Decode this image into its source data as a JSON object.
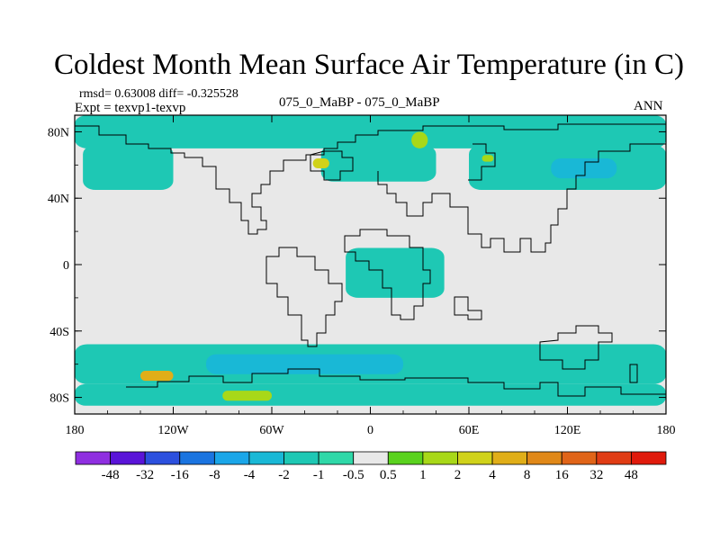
{
  "header": {
    "title": "Coldest Month Mean Surface Air Temperature (in C)",
    "stats": "rmsd= 0.63008 diff= -0.325528",
    "experiment": "Expt = texvp1-texvp",
    "comparison": "075_0_MaBP - 075_0_MaBP",
    "season": "ANN"
  },
  "chart_data": {
    "type": "heatmap",
    "title": "Coldest Month Mean Surface Air Temperature (in C)",
    "subtitle": "075_0_MaBP - 075_0_MaBP",
    "xlabel": "",
    "ylabel": "",
    "xlim": [
      -180,
      180
    ],
    "ylim": [
      -90,
      90
    ],
    "x_ticks": [
      {
        "value": -180,
        "label": "180"
      },
      {
        "value": -120,
        "label": "120W"
      },
      {
        "value": -60,
        "label": "60W"
      },
      {
        "value": 0,
        "label": "0"
      },
      {
        "value": 60,
        "label": "60E"
      },
      {
        "value": 120,
        "label": "120E"
      },
      {
        "value": 180,
        "label": "180"
      }
    ],
    "y_ticks": [
      {
        "value": 80,
        "label": "80N"
      },
      {
        "value": 40,
        "label": "40N"
      },
      {
        "value": 0,
        "label": "0"
      },
      {
        "value": -40,
        "label": "40S"
      },
      {
        "value": -80,
        "label": "80S"
      }
    ],
    "colorbar": {
      "levels": [
        "-48",
        "-32",
        "-16",
        "-8",
        "-4",
        "-2",
        "-1",
        "-0.5",
        "0.5",
        "1",
        "2",
        "4",
        "8",
        "16",
        "32",
        "48"
      ],
      "colors": [
        "#8f2fe0",
        "#5a14d8",
        "#2c50de",
        "#1a74e0",
        "#1aa6e8",
        "#19b8d6",
        "#1ec8b4",
        "#2fd8a8",
        "#e8e8e8",
        "#5ad21e",
        "#a8d818",
        "#d0d21a",
        "#e0ae18",
        "#e08818",
        "#e06418",
        "#e03c14",
        "#e01a0c"
      ]
    },
    "regions": [
      {
        "name": "arctic-band",
        "lon": [
          -180,
          180
        ],
        "lat": [
          70,
          90
        ],
        "level": "-1"
      },
      {
        "name": "north-america-north",
        "lon": [
          -175,
          -120
        ],
        "lat": [
          45,
          72
        ],
        "level": "-1"
      },
      {
        "name": "siberia",
        "lon": [
          60,
          180
        ],
        "lat": [
          45,
          72
        ],
        "level": "-1"
      },
      {
        "name": "siberia-core",
        "lon": [
          110,
          150
        ],
        "lat": [
          52,
          64
        ],
        "level": "-2"
      },
      {
        "name": "scandinavia",
        "lon": [
          -30,
          40
        ],
        "lat": [
          50,
          72
        ],
        "level": "-1"
      },
      {
        "name": "greenland-warm",
        "lon": [
          -35,
          -25
        ],
        "lat": [
          58,
          64
        ],
        "level": "2"
      },
      {
        "name": "north-atlantic-warm",
        "lon": [
          25,
          35
        ],
        "lat": [
          70,
          80
        ],
        "level": "1"
      },
      {
        "name": "europe-warm",
        "lon": [
          68,
          75
        ],
        "lat": [
          62,
          66
        ],
        "level": "1"
      },
      {
        "name": "southern-ocean",
        "lon": [
          -180,
          180
        ],
        "lat": [
          -72,
          -48
        ],
        "level": "-1"
      },
      {
        "name": "southern-ocean-core",
        "lon": [
          -100,
          20
        ],
        "lat": [
          -66,
          -54
        ],
        "level": "-2"
      },
      {
        "name": "antarctica-coast",
        "lon": [
          -180,
          180
        ],
        "lat": [
          -85,
          -72
        ],
        "level": "-1"
      },
      {
        "name": "south-pacific-warm",
        "lon": [
          -140,
          -120
        ],
        "lat": [
          -70,
          -64
        ],
        "level": "4"
      },
      {
        "name": "antarctic-warm",
        "lon": [
          -90,
          -60
        ],
        "lat": [
          -82,
          -76
        ],
        "level": "1"
      },
      {
        "name": "tropical-speckle",
        "lon": [
          -15,
          45
        ],
        "lat": [
          -20,
          10
        ],
        "level": "-1"
      }
    ]
  }
}
